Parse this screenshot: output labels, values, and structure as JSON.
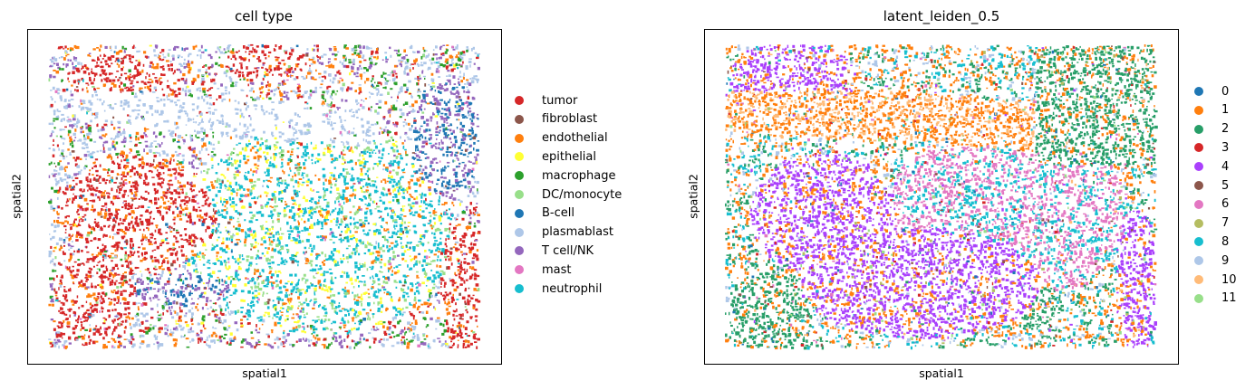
{
  "chart_data": [
    {
      "type": "scatter",
      "title": "cell type",
      "xlabel": "spatial1",
      "ylabel": "spatial2",
      "grid": false,
      "ticks": "hidden",
      "legend_position": "right",
      "categories": [
        {
          "name": "tumor",
          "color": "#d62728"
        },
        {
          "name": "fibroblast",
          "color": "#8c564b"
        },
        {
          "name": "endothelial",
          "color": "#ff7f0e"
        },
        {
          "name": "epithelial",
          "color": "#ffff33"
        },
        {
          "name": "macrophage",
          "color": "#2ca02c"
        },
        {
          "name": "DC/monocyte",
          "color": "#98df8a"
        },
        {
          "name": "B-cell",
          "color": "#1f77b4"
        },
        {
          "name": "plasmablast",
          "color": "#aec7e8"
        },
        {
          "name": "T cell/NK",
          "color": "#9467bd"
        },
        {
          "name": "mast",
          "color": "#e377c2"
        },
        {
          "name": "neutrophil",
          "color": "#17becf"
        }
      ]
    },
    {
      "type": "scatter",
      "title": "latent_leiden_0.5",
      "xlabel": "spatial1",
      "ylabel": "spatial2",
      "grid": false,
      "ticks": "hidden",
      "legend_position": "right",
      "categories": [
        {
          "name": "0",
          "color": "#1f77b4"
        },
        {
          "name": "1",
          "color": "#ff7f0e"
        },
        {
          "name": "2",
          "color": "#279e68"
        },
        {
          "name": "3",
          "color": "#d62728"
        },
        {
          "name": "4",
          "color": "#aa40fc"
        },
        {
          "name": "5",
          "color": "#8c564b"
        },
        {
          "name": "6",
          "color": "#e377c2"
        },
        {
          "name": "7",
          "color": "#b5bd61"
        },
        {
          "name": "8",
          "color": "#17becf"
        },
        {
          "name": "9",
          "color": "#aec7e8"
        },
        {
          "name": "10",
          "color": "#ffbb78"
        },
        {
          "name": "11",
          "color": "#98df8a"
        }
      ]
    }
  ]
}
